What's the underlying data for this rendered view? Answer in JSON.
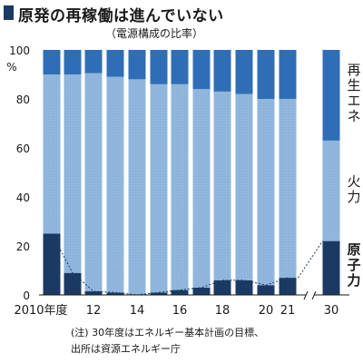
{
  "header": {
    "title": "原発の再稼働は進んでいない",
    "subtitle": "（電源構成の比率）"
  },
  "note": {
    "line1": "(注) 30年度はエネルギー基本計画の目標、",
    "line2": "出所は資源エネルギー庁"
  },
  "colors": {
    "nuclear": "#1b3a63",
    "thermal": "#8db3db",
    "renewable": "#2f6eb6",
    "line": "#1b3a63"
  },
  "chart_data": {
    "type": "bar",
    "stacked": true,
    "title": "原発の再稼働は進んでいない",
    "subtitle": "（電源構成の比率）",
    "ylabel": "%",
    "ylim": [
      0,
      100
    ],
    "yticks": [
      0,
      20,
      40,
      60,
      80,
      100
    ],
    "categories": [
      "2010",
      "2011",
      "2012",
      "2013",
      "2014",
      "2015",
      "2016",
      "2017",
      "2018",
      "2019",
      "2020",
      "2021",
      "2030"
    ],
    "x_tick_labels": [
      {
        "category": "2010",
        "label": "2010年度"
      },
      {
        "category": "2012",
        "label": "12"
      },
      {
        "category": "2014",
        "label": "14"
      },
      {
        "category": "2016",
        "label": "16"
      },
      {
        "category": "2018",
        "label": "18"
      },
      {
        "category": "2020",
        "label": "20"
      },
      {
        "category": "2021",
        "label": "21"
      },
      {
        "category": "2030",
        "label": "30"
      }
    ],
    "series": [
      {
        "name": "原子力",
        "values": [
          25,
          9,
          1.5,
          1,
          0,
          1,
          2,
          3,
          6,
          6,
          4,
          7,
          22
        ]
      },
      {
        "name": "火力",
        "values": [
          65,
          81,
          89,
          88,
          88,
          85,
          84,
          81,
          77,
          76,
          76,
          73,
          41
        ]
      },
      {
        "name": "再生エネ",
        "values": [
          10,
          10,
          9.5,
          11,
          12,
          14,
          14,
          16,
          17,
          18,
          20,
          20,
          37
        ]
      }
    ],
    "legend": "right, inline",
    "grid": false,
    "axis_break": "between 2021 and 2030"
  }
}
